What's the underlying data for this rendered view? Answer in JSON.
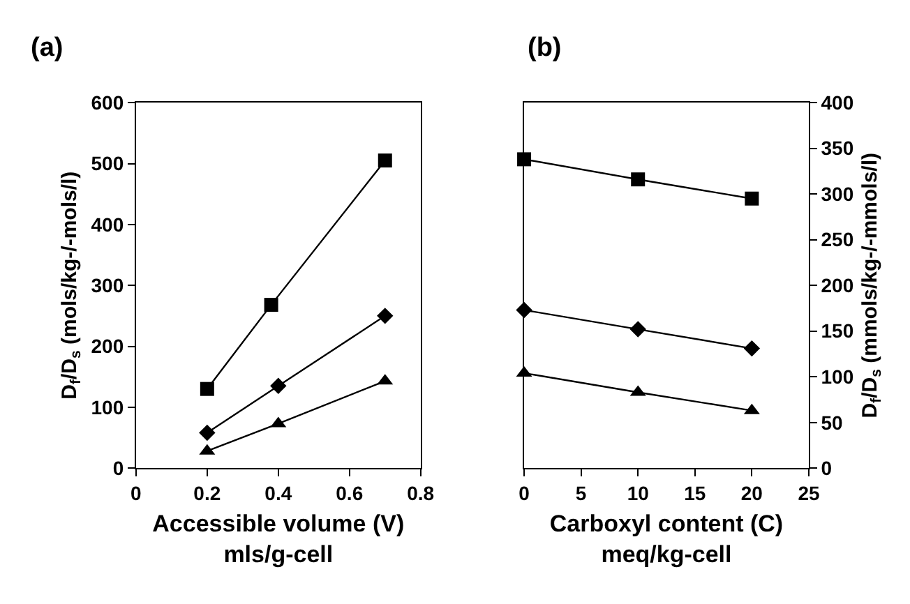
{
  "chart_data": [
    {
      "type": "line",
      "title": "(a)",
      "xlabel": "Accessible volume (V)\nmls/g-cell",
      "ylabel": "D$_{f}$/D$_{s}$ (mols/kg-/-mols/l)",
      "xlim": [
        0,
        0.8
      ],
      "xticks": [
        0,
        0.2,
        0.4,
        0.6,
        0.8
      ],
      "ylim": [
        0,
        600
      ],
      "yticks": [
        0,
        100,
        200,
        300,
        400,
        500,
        600
      ],
      "series": [
        {
          "color": "#000000",
          "marker": "square",
          "x": [
            0.2,
            0.38,
            0.7
          ],
          "values": [
            130,
            268,
            505
          ]
        },
        {
          "color": "#000000",
          "marker": "diamond",
          "x": [
            0.2,
            0.4,
            0.7
          ],
          "values": [
            58,
            135,
            250
          ]
        },
        {
          "color": "#000000",
          "marker": "triangle",
          "x": [
            0.2,
            0.4,
            0.7
          ],
          "values": [
            28,
            73,
            143
          ]
        }
      ]
    },
    {
      "type": "line",
      "title": "(b)",
      "xlabel": "Carboxyl content (C)\nmeq/kg-cell",
      "y2label": "D$_{f}$/D$_{s}$ (mmols/kg-/-mmols/l)",
      "xlim": [
        0,
        25
      ],
      "xticks": [
        0,
        5,
        10,
        15,
        20,
        25
      ],
      "y2lim": [
        0,
        400
      ],
      "y2ticks": [
        0,
        50,
        100,
        150,
        200,
        250,
        300,
        350,
        400
      ],
      "series": [
        {
          "color": "#000000",
          "marker": "square",
          "axis": "y2",
          "x": [
            0,
            10,
            20
          ],
          "values": [
            338,
            316,
            295
          ]
        },
        {
          "color": "#000000",
          "marker": "diamond",
          "axis": "y2",
          "x": [
            0,
            10,
            20
          ],
          "values": [
            173,
            152,
            131
          ]
        },
        {
          "color": "#000000",
          "marker": "triangle",
          "axis": "y2",
          "x": [
            0,
            10,
            20
          ],
          "values": [
            104,
            83,
            63
          ]
        }
      ]
    }
  ]
}
